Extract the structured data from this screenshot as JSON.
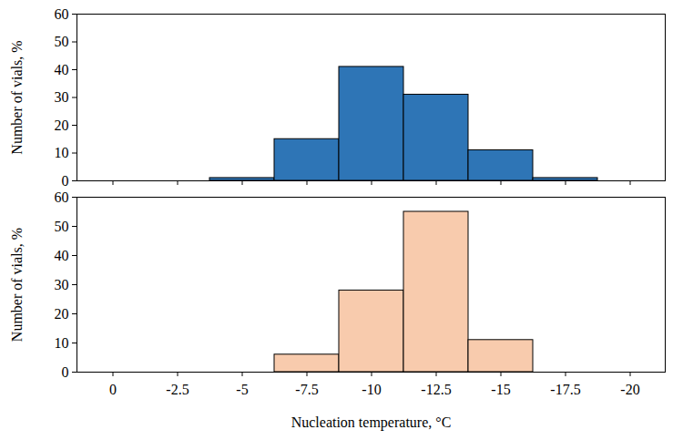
{
  "chart_data": [
    {
      "type": "bar",
      "ylabel": "Number of vials, %",
      "categories": [
        "0",
        "-2.5",
        "-5",
        "-7.5",
        "-10",
        "-12.5",
        "-15",
        "-17.5",
        "-20"
      ],
      "values": [
        0,
        0,
        1,
        15,
        41,
        31,
        11,
        1,
        0
      ],
      "color": "#2e75b6",
      "ylim": [
        0,
        60
      ],
      "yticks": [
        0,
        10,
        20,
        30,
        40,
        50,
        60
      ],
      "tick_labels": "y"
    },
    {
      "type": "bar",
      "xlabel": "Nucleation temperature, °C",
      "ylabel": "Number of vials, %",
      "categories": [
        "0",
        "-2.5",
        "-5",
        "-7.5",
        "-10",
        "-12.5",
        "-15",
        "-17.5",
        "-20"
      ],
      "values": [
        0,
        0,
        0,
        6,
        28,
        55,
        11,
        0,
        0
      ],
      "color": "#f8cbad",
      "ylim": [
        0,
        60
      ],
      "yticks": [
        0,
        10,
        20,
        30,
        40,
        50,
        60
      ]
    }
  ]
}
